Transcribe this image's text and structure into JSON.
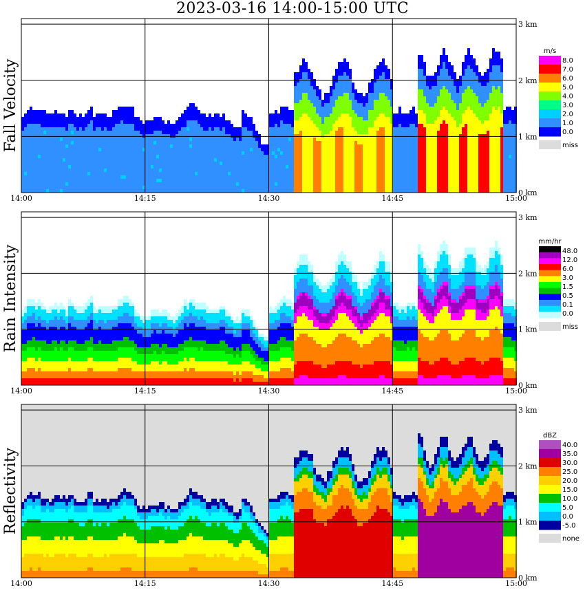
{
  "title": "2023-03-16   14:00-15:00 UTC",
  "chart_data": [
    {
      "type": "heatmap",
      "panel_label": "Fall Velocity",
      "x_ticks": [
        "14:00",
        "14:15",
        "14:30",
        "14:45",
        "15:00"
      ],
      "y_ticks": [
        "0 km",
        "1 km",
        "2 km",
        "3 km"
      ],
      "xlim": [
        "14:00",
        "15:00"
      ],
      "ylim_km": [
        0,
        3.1
      ],
      "colorbar": {
        "unit": "m/s",
        "labels": [
          "8.0",
          "7.0",
          "6.0",
          "5.0",
          "4.0",
          "3.0",
          "2.0",
          "1.0",
          "0.0"
        ],
        "colors": [
          "#ff00ff",
          "#ff0000",
          "#ff8000",
          "#ffff00",
          "#80ff00",
          "#00ff80",
          "#00d0ff",
          "#3090ff",
          "#0000ff"
        ],
        "miss_label": "miss",
        "miss_color": "#dcdcdc"
      },
      "background": "#ffffff",
      "grid": true
    },
    {
      "type": "heatmap",
      "panel_label": "Rain Intensity",
      "x_ticks": [
        "14:00",
        "14:15",
        "14:30",
        "14:45",
        "15:00"
      ],
      "y_ticks": [
        "0 km",
        "1 km",
        "2 km",
        "3 km"
      ],
      "xlim": [
        "14:00",
        "15:00"
      ],
      "ylim_km": [
        0,
        3.1
      ],
      "colorbar": {
        "unit": "mm/hr",
        "labels": [
          "48.0",
          "12.0",
          "6.0",
          "3.0",
          "1.5",
          "0.5",
          "0.1",
          "0.0"
        ],
        "colors": [
          "#000000",
          "#a000c0",
          "#ff00ff",
          "#ff0000",
          "#ff8000",
          "#ffff00",
          "#00ff00",
          "#00c000",
          "#0000ff",
          "#3090ff",
          "#00e0ff",
          "#c0ffff"
        ],
        "miss_label": "miss",
        "miss_color": "#dcdcdc"
      },
      "background": "#ffffff",
      "grid": true
    },
    {
      "type": "heatmap",
      "panel_label": "Reflectivity",
      "x_ticks": [
        "14:00",
        "14:15",
        "14:30",
        "14:45",
        "15:00"
      ],
      "y_ticks": [
        "0 km",
        "1 km",
        "2 km",
        "3 km"
      ],
      "xlim": [
        "14:00",
        "15:00"
      ],
      "ylim_km": [
        0,
        3.1
      ],
      "colorbar": {
        "unit": "dBZ",
        "labels": [
          "40.0",
          "35.0",
          "30.0",
          "25.0",
          "20.0",
          "15.0",
          "10.0",
          "5.0",
          "0.0",
          "-5.0"
        ],
        "colors": [
          "#b050c0",
          "#a000a0",
          "#e00000",
          "#ff8000",
          "#ffd000",
          "#ffff00",
          "#00c000",
          "#00ffff",
          "#00c0ff",
          "#0000a0"
        ],
        "miss_label": "none",
        "miss_color": "#dcdcdc"
      },
      "background": "#dcdcdc",
      "grid": true
    }
  ]
}
